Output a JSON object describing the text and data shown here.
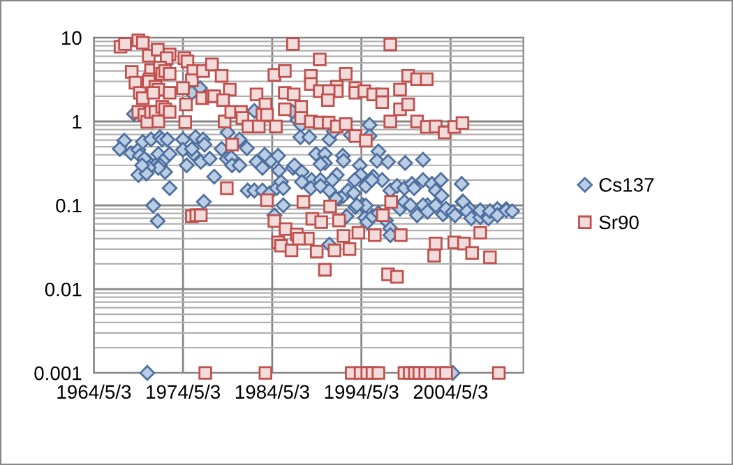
{
  "chart_data": {
    "type": "scatter",
    "log": "y",
    "grid": true,
    "legend": "right",
    "xlim": [
      "1964-05-03",
      "2012-07"
    ],
    "xticks": [
      {
        "value": "1964-05-03",
        "label": "1964/5/3"
      },
      {
        "value": "1974-05-03",
        "label": "1974/5/3"
      },
      {
        "value": "1984-05-03",
        "label": "1984/5/3"
      },
      {
        "value": "1994-05-03",
        "label": "1994/5/3"
      },
      {
        "value": "2004-05-03",
        "label": "2004/5/3"
      }
    ],
    "ylim": [
      0.001,
      10
    ],
    "yticks": [
      0.001,
      0.01,
      0.1,
      1,
      10
    ],
    "series": [
      {
        "name": "Cs137",
        "color": "#b9cde5",
        "marker": "diamond",
        "x": [
          "1968-11",
          "1976-04",
          "1975-05",
          "1967-10",
          "1967-04",
          "1968-07",
          "1969-05",
          "1969-11",
          "1969-07",
          "1970-10",
          "1971-10",
          "1972-01",
          "1972-08",
          "1971-08",
          "1972-05",
          "1972-11",
          "1970-05",
          "1971-04",
          "1971-10",
          "1972-05",
          "1971-08",
          "1970-01",
          "1970-07",
          "1969-05",
          "1970-04",
          "1969-10",
          "1972-11",
          "1971-01",
          "1974-05",
          "1974-05",
          "1974-10",
          "1975-07",
          "1975-10",
          "1976-08",
          "1976-10",
          "1975-05",
          "1976-05",
          "1977-05",
          "1977-11",
          "1978-09",
          "1979-05",
          "1979-04",
          "1979-10",
          "1979-11",
          "1980-09",
          "1981-07",
          "1980-09",
          "1982-05",
          "1982-08",
          "1983-04",
          "1984-03",
          "1985-01",
          "1983-07",
          "1981-08",
          "1982-05",
          "1983-04",
          "1984-02",
          "1984-11",
          "1976-09",
          "1971-01",
          "1971-07",
          "1970-05",
          "1986-08",
          "1987-03",
          "1987-08",
          "1995-04",
          "1987-07",
          "1988-07",
          "1990-10",
          "1991-04",
          "1993-03",
          "1995-04",
          "1996-04",
          "1996-02",
          "1997-05",
          "1999-04",
          "2001-04",
          "1989-04",
          "1990-04",
          "1992-04",
          "1990-04",
          "1989-10",
          "1992-05",
          "1994-03",
          "1994-04",
          "1995-09",
          "1996-09",
          "1986-09",
          "1986-11",
          "1987-09",
          "1988-10",
          "1989-10",
          "1991-08",
          "1991-02",
          "1987-09",
          "1985-02",
          "1985-05",
          "1985-08",
          "1988-09",
          "1989-10",
          "1990-10",
          "1991-11",
          "1992-05",
          "1992-11",
          "1993-07",
          "1993-08",
          "1994-11",
          "1995-07",
          "1997-08",
          "1998-05",
          "1999-03",
          "2000-01",
          "2000-04",
          "2001-04",
          "2002-04",
          "2002-09",
          "2003-04",
          "2003-05",
          "2005-08",
          "2005-09",
          "1994-07",
          "1993-09",
          "1985-08",
          "2001-10",
          "2006-07",
          "2009-08",
          "2010-08",
          "1984-08",
          "1990-10",
          "1992-09",
          "1991-07",
          "1994-10",
          "1995-01",
          "1995-08",
          "1996-04",
          "1994-11",
          "1993-11",
          "1997-02",
          "1997-08",
          "1997-08",
          "1998-09",
          "1999-03",
          "1999-11",
          "2000-08",
          "2001-04",
          "2001-10",
          "2002-09",
          "2003-07",
          "2003-11",
          "2004-08",
          "2004-11",
          "2005-10",
          "2006-03",
          "2006-09",
          "2007-09",
          "2007-09",
          "2008-08",
          "2008-10",
          "2009-08",
          "2010-08",
          "2011-04",
          "2004-08"
        ],
        "values": [
          1.23,
          2.5,
          2.2,
          0.59,
          0.47,
          0.42,
          0.46,
          0.57,
          0.39,
          0.61,
          0.65,
          0.61,
          0.61,
          0.41,
          0.36,
          0.41,
          0.34,
          0.3,
          0.3,
          0.25,
          0.28,
          0.36,
          0.28,
          0.23,
          0.24,
          0.3,
          0.16,
          0.1,
          0.61,
          0.46,
          0.3,
          0.41,
          0.65,
          0.61,
          0.53,
          0.47,
          0.33,
          0.36,
          0.22,
          0.47,
          0.74,
          0.36,
          0.37,
          0.3,
          0.3,
          0.48,
          0.61,
          1.34,
          0.33,
          0.28,
          0.34,
          0.39,
          0.4,
          0.15,
          0.15,
          0.15,
          0.14,
          0.16,
          0.11,
          0.099,
          0.065,
          0.001,
          1.31,
          1.04,
          0.91,
          0.91,
          0.65,
          0.65,
          0.61,
          0.76,
          0.69,
          0.67,
          0.44,
          0.34,
          0.33,
          0.32,
          0.35,
          0.41,
          0.41,
          0.39,
          0.32,
          0.31,
          0.34,
          0.3,
          0.23,
          0.22,
          0.2,
          0.28,
          0.3,
          0.25,
          0.2,
          0.2,
          0.23,
          0.2,
          0.19,
          0.26,
          0.19,
          0.16,
          0.16,
          0.17,
          0.15,
          0.12,
          0.13,
          0.15,
          0.14,
          0.2,
          0.17,
          0.2,
          0.15,
          0.17,
          0.16,
          0.18,
          0.16,
          0.2,
          0.18,
          0.15,
          0.2,
          0.13,
          0.18,
          0.11,
          0.1,
          0.095,
          0.1,
          0.1,
          0.09,
          0.09,
          0.09,
          0.076,
          0.034,
          0.074,
          0.12,
          0.071,
          0.063,
          0.074,
          0.081,
          0.099,
          0.1,
          0.066,
          0.053,
          0.044,
          0.091,
          0.11,
          0.1,
          0.076,
          0.1,
          0.084,
          0.1,
          0.078,
          0.091,
          0.083,
          0.076,
          0.11,
          0.085,
          0.07,
          0.072,
          0.087,
          0.07,
          0.085,
          0.076,
          0.087,
          0.085,
          0.001
        ]
      },
      {
        "name": "Sr90",
        "color": "#f2dcdb",
        "marker": "square",
        "x": [
          "1967-05",
          "1967-11",
          "1969-05",
          "1969-11",
          "1970-07",
          "1971-07",
          "1972-11",
          "1972-07",
          "1968-08",
          "1969-01",
          "1969-07",
          "1969-11",
          "1970-10",
          "1970-08",
          "1971-10",
          "1972-01",
          "1972-05",
          "1972-11",
          "1970-07",
          "1971-04",
          "1971-08",
          "1971-01",
          "1972-11",
          "1969-05",
          "1970-01",
          "1970-05",
          "1970-10",
          "1971-04",
          "1971-08",
          "1972-01",
          "1972-05",
          "1972-11",
          "1974-07",
          "1974-11",
          "1975-07",
          "1975-05",
          "1976-08",
          "1977-08",
          "1978-09",
          "1979-08",
          "1976-07",
          "1977-08",
          "1977-11",
          "1978-11",
          "1974-09",
          "1974-05",
          "1974-08",
          "1979-01",
          "1979-10",
          "1980-11",
          "1981-01",
          "1981-09",
          "1982-11",
          "1982-08",
          "1983-08",
          "1983-04",
          "1983-10",
          "1984-08",
          "1984-10",
          "1979-11",
          "1979-04",
          "1983-10",
          "1975-05",
          "1975-11",
          "1976-05",
          "1984-08",
          "1985-01",
          "1976-11",
          "1983-08",
          "1986-09",
          "1989-09",
          "1997-08",
          "1985-10",
          "1988-09",
          "1988-09",
          "1992-08",
          "1999-08",
          "2000-08",
          "2001-09",
          "1998-09",
          "1991-08",
          "1991-08",
          "1989-09",
          "1990-09",
          "1985-10",
          "1986-10",
          "1993-09",
          "1993-09",
          "1994-09",
          "1995-09",
          "1996-09",
          "1996-09",
          "1990-08",
          "1987-08",
          "1985-10",
          "1998-09",
          "1999-08",
          "1987-08",
          "1988-09",
          "1989-09",
          "1990-09",
          "1991-08",
          "1992-08",
          "1997-08",
          "2000-08",
          "2001-09",
          "2002-09",
          "2003-09",
          "2004-10",
          "2005-09",
          "1993-09",
          "1994-11",
          "1987-11",
          "1990-11",
          "1997-09",
          "1985-11",
          "1987-02",
          "1988-05",
          "1985-05",
          "1986-07",
          "1987-05",
          "1988-11",
          "1989-11",
          "1991-11",
          "1992-05",
          "1989-05",
          "1991-05",
          "1993-01",
          "1994-01",
          "1990-04",
          "1995-11",
          "1996-10",
          "1998-10",
          "1997-05",
          "1998-05",
          "2002-09",
          "2002-07",
          "2004-10",
          "2005-11",
          "2006-10",
          "2007-09",
          "2008-10",
          "1993-04",
          "1994-04",
          "1995-01",
          "1995-08",
          "1996-04",
          "1999-03",
          "1999-10",
          "2000-05",
          "2000-11",
          "2001-07",
          "2002-02",
          "2003-05",
          "2003-11",
          "2009-10"
        ],
        "values": [
          7.8,
          8.4,
          9.3,
          8.7,
          6.1,
          7.2,
          6.3,
          5.7,
          3.9,
          2.9,
          2.2,
          1.9,
          4.1,
          3.2,
          4.4,
          3.7,
          4.0,
          3.7,
          3.0,
          2.6,
          2.4,
          2.2,
          2.2,
          1.3,
          1.2,
          0.99,
          1.3,
          1.3,
          1.0,
          1.5,
          1.4,
          1.3,
          5.7,
          5.2,
          4.0,
          3.1,
          4.0,
          4.8,
          3.5,
          2.4,
          1.9,
          2.0,
          2.0,
          1.8,
          1.6,
          2.5,
          0.98,
          1.0,
          1.3,
          1.3,
          1.1,
          0.87,
          0.87,
          2.1,
          1.6,
          1.2,
          1.2,
          3.6,
          0.87,
          0.53,
          0.16,
          0.115,
          0.074,
          0.076,
          0.076,
          0.065,
          0.036,
          0.001,
          0.001,
          8.4,
          5.5,
          8.3,
          4.0,
          3.5,
          2.8,
          3.7,
          3.5,
          3.2,
          3.2,
          2.4,
          2.6,
          2.3,
          2.3,
          2.3,
          2.2,
          2.1,
          2.5,
          2.2,
          2.3,
          2.1,
          2.1,
          1.7,
          1.8,
          1.5,
          1.4,
          1.4,
          1.6,
          1.1,
          1.0,
          0.97,
          0.97,
          0.87,
          0.93,
          1.0,
          1.0,
          0.86,
          0.87,
          0.74,
          0.86,
          0.96,
          0.67,
          0.59,
          0.11,
          0.097,
          0.11,
          0.052,
          0.045,
          0.04,
          0.033,
          0.029,
          0.04,
          0.069,
          0.063,
          0.066,
          0.043,
          0.028,
          0.029,
          0.03,
          0.047,
          0.017,
          0.044,
          0.076,
          0.044,
          0.015,
          0.014,
          0.035,
          0.025,
          0.036,
          0.035,
          0.027,
          0.047,
          0.024,
          0.001,
          0.001,
          0.001,
          0.001,
          0.001,
          0.001,
          0.001,
          0.001,
          0.001,
          0.001,
          0.001,
          0.001,
          0.001,
          0.001
        ]
      }
    ]
  }
}
